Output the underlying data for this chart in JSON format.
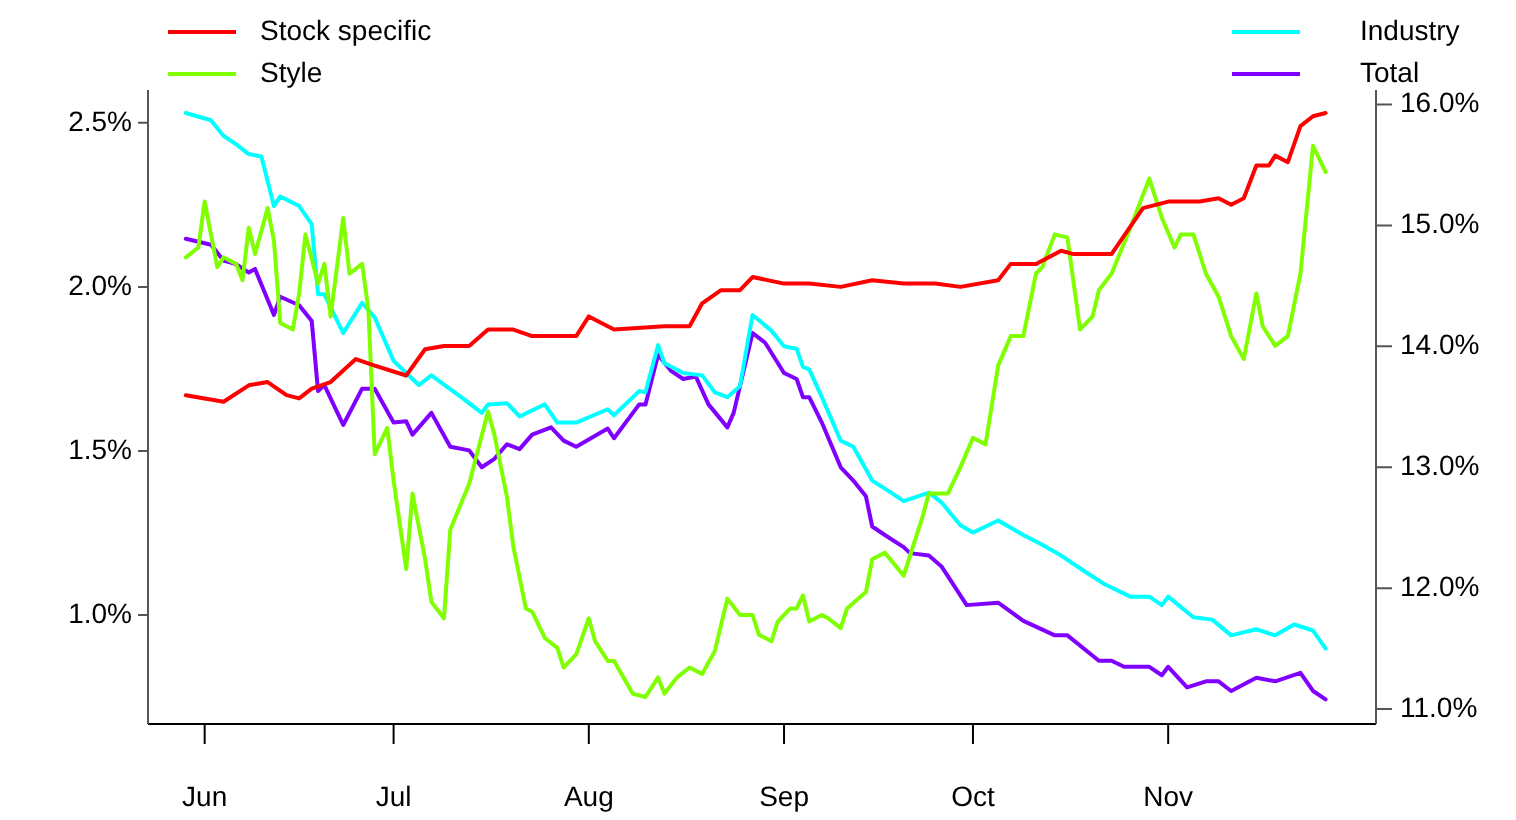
{
  "chart_data": {
    "type": "line",
    "legend": "top",
    "xlim": [
      "--05-23",
      "--12-04"
    ],
    "xticks": [
      {
        "value": "--06-01",
        "label": "Jun"
      },
      {
        "value": "--07-01",
        "label": "Jul"
      },
      {
        "value": "--08-01",
        "label": "Aug"
      },
      {
        "value": "--09-01",
        "label": "Sep"
      },
      {
        "value": "--10-01",
        "label": "Oct"
      },
      {
        "value": "--11-01",
        "label": "Nov"
      }
    ],
    "ylim": [
      0.68,
      2.6
    ],
    "yticks": [
      {
        "value": 1.0,
        "label": "1.0%"
      },
      {
        "value": 1.5,
        "label": "1.5%"
      },
      {
        "value": 2.0,
        "label": "2.0%"
      },
      {
        "value": 2.5,
        "label": "2.5%"
      }
    ],
    "y2lim": [
      10.91,
      16.12
    ],
    "y2ticks": [
      {
        "value": 11,
        "label": "11.0%"
      },
      {
        "value": 12,
        "label": "12.0%"
      },
      {
        "value": 13,
        "label": "13.0%"
      },
      {
        "value": 14,
        "label": "14.0%"
      },
      {
        "value": 15,
        "label": "15.0%"
      },
      {
        "value": 16,
        "label": "16.0%"
      }
    ],
    "series": [
      {
        "name": "Stock specific",
        "color": "#ff0000",
        "x": [
          "--05-29",
          "--06-04",
          "--06-08",
          "--06-11",
          "--06-14",
          "--06-16",
          "--06-18",
          "--06-21",
          "--06-25",
          "--06-28",
          "--07-03",
          "--07-06",
          "--07-09",
          "--07-13",
          "--07-16",
          "--07-20",
          "--07-23",
          "--07-30",
          "--08-01",
          "--08-05",
          "--08-13",
          "--08-17",
          "--08-19",
          "--08-22",
          "--08-25",
          "--08-27",
          "--09-01",
          "--09-05",
          "--09-10",
          "--09-15",
          "--09-20",
          "--09-25",
          "--09-29",
          "--10-05",
          "--10-07",
          "--10-11",
          "--10-15",
          "--10-17",
          "--10-20",
          "--10-23",
          "--10-28",
          "--11-01",
          "--11-06",
          "--11-09",
          "--11-11",
          "--11-13",
          "--11-15",
          "--11-17",
          "--11-18",
          "--11-20",
          "--11-22",
          "--11-24",
          "--11-26"
        ],
        "values": [
          1.67,
          1.65,
          1.7,
          1.71,
          1.67,
          1.66,
          1.69,
          1.71,
          1.78,
          1.76,
          1.73,
          1.81,
          1.82,
          1.82,
          1.87,
          1.87,
          1.85,
          1.85,
          1.91,
          1.87,
          1.88,
          1.88,
          1.95,
          1.99,
          1.99,
          2.03,
          2.01,
          2.01,
          2.0,
          2.02,
          2.01,
          2.01,
          2.0,
          2.02,
          2.07,
          2.07,
          2.11,
          2.1,
          2.1,
          2.1,
          2.24,
          2.26,
          2.26,
          2.27,
          2.25,
          2.27,
          2.37,
          2.37,
          2.4,
          2.38,
          2.49,
          2.52,
          2.53
        ]
      },
      {
        "name": "Style",
        "color": "#7fff00",
        "x": [
          "--05-29",
          "--05-31",
          "--06-01",
          "--06-03",
          "--06-04",
          "--06-06",
          "--06-07",
          "--06-08",
          "--06-09",
          "--06-11",
          "--06-12",
          "--06-13",
          "--06-15",
          "--06-16",
          "--06-17",
          "--06-19",
          "--06-20",
          "--06-21",
          "--06-23",
          "--06-24",
          "--06-26",
          "--06-27",
          "--06-28",
          "--06-30",
          "--07-01",
          "--07-03",
          "--07-04",
          "--07-06",
          "--07-07",
          "--07-09",
          "--07-10",
          "--07-13",
          "--07-16",
          "--07-17",
          "--07-19",
          "--07-20",
          "--07-22",
          "--07-23",
          "--07-25",
          "--07-27",
          "--07-28",
          "--07-30",
          "--08-01",
          "--08-02",
          "--08-04",
          "--08-05",
          "--08-08",
          "--08-10",
          "--08-12",
          "--08-13",
          "--08-15",
          "--08-17",
          "--08-19",
          "--08-21",
          "--08-23",
          "--08-25",
          "--08-27",
          "--08-28",
          "--08-30",
          "--08-31",
          "--09-02",
          "--09-03",
          "--09-04",
          "--09-05",
          "--09-07",
          "--09-08",
          "--09-10",
          "--09-11",
          "--09-14",
          "--09-15",
          "--09-17",
          "--09-20",
          "--09-23",
          "--09-24",
          "--09-27",
          "--09-29",
          "--10-01",
          "--10-03",
          "--10-05",
          "--10-07",
          "--10-09",
          "--10-11",
          "--10-12",
          "--10-14",
          "--10-16",
          "--10-18",
          "--10-20",
          "--10-21",
          "--10-23",
          "--10-26",
          "--10-29",
          "--10-31",
          "--11-02",
          "--11-03",
          "--11-05",
          "--11-07",
          "--11-09",
          "--11-11",
          "--11-13",
          "--11-15",
          "--11-16",
          "--11-18",
          "--11-20",
          "--11-22",
          "--11-24",
          "--11-26"
        ],
        "values": [
          2.09,
          2.12,
          2.26,
          2.06,
          2.09,
          2.07,
          2.02,
          2.18,
          2.1,
          2.24,
          2.14,
          1.89,
          1.87,
          1.98,
          2.16,
          2.01,
          2.07,
          1.91,
          2.21,
          2.04,
          2.07,
          1.93,
          1.49,
          1.57,
          1.41,
          1.14,
          1.37,
          1.17,
          1.04,
          0.99,
          1.26,
          1.4,
          1.62,
          1.55,
          1.36,
          1.21,
          1.02,
          1.01,
          0.93,
          0.9,
          0.84,
          0.88,
          0.99,
          0.92,
          0.86,
          0.86,
          0.76,
          0.75,
          0.81,
          0.76,
          0.81,
          0.84,
          0.82,
          0.89,
          1.05,
          1.0,
          1.0,
          0.94,
          0.92,
          0.98,
          1.02,
          1.02,
          1.06,
          0.98,
          1.0,
          0.99,
          0.96,
          1.02,
          1.07,
          1.17,
          1.19,
          1.12,
          1.3,
          1.37,
          1.37,
          1.45,
          1.54,
          1.52,
          1.76,
          1.85,
          1.85,
          2.04,
          2.06,
          2.16,
          2.15,
          1.87,
          1.91,
          1.99,
          2.04,
          2.18,
          2.33,
          2.21,
          2.12,
          2.16,
          2.16,
          2.04,
          1.97,
          1.85,
          1.78,
          1.98,
          1.88,
          1.82,
          1.85,
          2.04,
          2.43,
          2.35
        ]
      },
      {
        "name": "Industry",
        "color": "#00ffff",
        "axis": "y2",
        "x": [
          "--05-29",
          "--06-02",
          "--06-04",
          "--06-06",
          "--06-08",
          "--06-10",
          "--06-12",
          "--06-13",
          "--06-16",
          "--06-18",
          "--06-19",
          "--06-20",
          "--06-23",
          "--06-26",
          "--06-28",
          "--07-01",
          "--07-05",
          "--07-07",
          "--07-12",
          "--07-15",
          "--07-16",
          "--07-19",
          "--07-21",
          "--07-25",
          "--07-27",
          "--07-30",
          "--08-04",
          "--08-05",
          "--08-09",
          "--08-10",
          "--08-12",
          "--08-13",
          "--08-16",
          "--08-19",
          "--08-21",
          "--08-23",
          "--08-25",
          "--08-27",
          "--08-30",
          "--09-01",
          "--09-03",
          "--09-04",
          "--09-05",
          "--09-07",
          "--09-10",
          "--09-12",
          "--09-15",
          "--09-18",
          "--09-20",
          "--09-24",
          "--09-26",
          "--09-29",
          "--10-01",
          "--10-05",
          "--10-09",
          "--10-12",
          "--10-15",
          "--10-19",
          "--10-22",
          "--10-26",
          "--10-29",
          "--10-31",
          "--11-01",
          "--11-05",
          "--11-08",
          "--11-11",
          "--11-15",
          "--11-18",
          "--11-21",
          "--11-24",
          "--11-26"
        ],
        "values": [
          15.93,
          15.87,
          15.74,
          15.67,
          15.59,
          15.57,
          15.16,
          15.24,
          15.16,
          15.01,
          14.43,
          14.43,
          14.11,
          14.36,
          14.24,
          13.88,
          13.68,
          13.76,
          13.57,
          13.45,
          13.52,
          13.53,
          13.42,
          13.52,
          13.37,
          13.37,
          13.48,
          13.43,
          13.63,
          13.62,
          14.01,
          13.86,
          13.78,
          13.76,
          13.62,
          13.58,
          13.67,
          14.26,
          14.13,
          14.0,
          13.98,
          13.83,
          13.81,
          13.58,
          13.22,
          13.17,
          12.89,
          12.79,
          12.72,
          12.79,
          12.71,
          12.52,
          12.46,
          12.56,
          12.44,
          12.36,
          12.27,
          12.13,
          12.03,
          11.93,
          11.93,
          11.86,
          11.93,
          11.76,
          11.74,
          11.61,
          11.66,
          11.61,
          11.7,
          11.65,
          11.5
        ]
      },
      {
        "name": "Total",
        "color": "#8000ff",
        "axis": "y2",
        "x": [
          "--05-29",
          "--06-02",
          "--06-04",
          "--06-06",
          "--06-08",
          "--06-09",
          "--06-12",
          "--06-13",
          "--06-16",
          "--06-18",
          "--06-19",
          "--06-20",
          "--06-23",
          "--06-26",
          "--06-28",
          "--07-01",
          "--07-03",
          "--07-04",
          "--07-07",
          "--07-10",
          "--07-13",
          "--07-15",
          "--07-17",
          "--07-19",
          "--07-21",
          "--07-23",
          "--07-26",
          "--07-28",
          "--07-30",
          "--08-04",
          "--08-05",
          "--08-09",
          "--08-10",
          "--08-12",
          "--08-14",
          "--08-16",
          "--08-18",
          "--08-20",
          "--08-23",
          "--08-24",
          "--08-27",
          "--08-29",
          "--09-01",
          "--09-03",
          "--09-04",
          "--09-05",
          "--09-07",
          "--09-10",
          "--09-12",
          "--09-14",
          "--09-15",
          "--09-17",
          "--09-20",
          "--09-21",
          "--09-24",
          "--09-26",
          "--09-29",
          "--09-30",
          "--10-05",
          "--10-09",
          "--10-14",
          "--10-16",
          "--10-21",
          "--10-23",
          "--10-25",
          "--10-29",
          "--10-31",
          "--11-01",
          "--11-04",
          "--11-07",
          "--11-09",
          "--11-11",
          "--11-15",
          "--11-18",
          "--11-22",
          "--11-24",
          "--11-26"
        ],
        "values": [
          14.89,
          14.84,
          14.71,
          14.68,
          14.61,
          14.64,
          14.26,
          14.41,
          14.34,
          14.21,
          13.63,
          13.68,
          13.35,
          13.65,
          13.65,
          13.37,
          13.38,
          13.27,
          13.45,
          13.17,
          13.14,
          13.0,
          13.07,
          13.19,
          13.15,
          13.27,
          13.33,
          13.22,
          13.17,
          13.32,
          13.24,
          13.52,
          13.52,
          13.93,
          13.8,
          13.73,
          13.75,
          13.52,
          13.33,
          13.45,
          14.11,
          14.03,
          13.78,
          13.73,
          13.58,
          13.58,
          13.37,
          13.0,
          12.89,
          12.76,
          12.51,
          12.44,
          12.34,
          12.29,
          12.27,
          12.18,
          11.94,
          11.86,
          11.88,
          11.73,
          11.61,
          11.61,
          11.4,
          11.4,
          11.35,
          11.35,
          11.28,
          11.35,
          11.18,
          11.23,
          11.23,
          11.15,
          11.26,
          11.23,
          11.3,
          11.15,
          11.08
        ]
      }
    ]
  }
}
